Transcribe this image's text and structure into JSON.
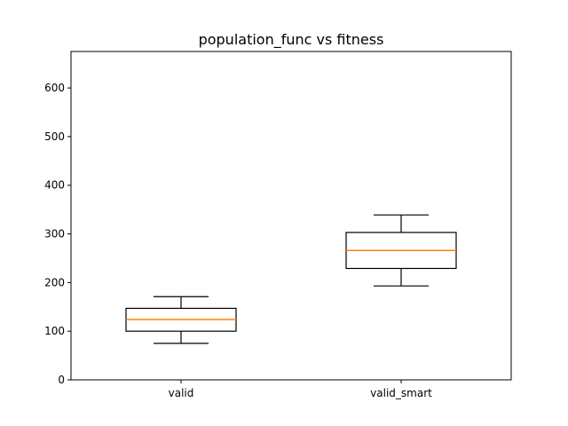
{
  "chart_data": {
    "type": "box",
    "title": "population_func vs fitness",
    "xlabel": "",
    "ylabel": "",
    "categories": [
      "valid",
      "valid_smart"
    ],
    "boxes": [
      {
        "category": "valid",
        "min": 75,
        "q1": 100,
        "median": 124,
        "q3": 147,
        "max": 171
      },
      {
        "category": "valid_smart",
        "min": 193,
        "q1": 229,
        "median": 266,
        "q3": 303,
        "max": 339
      }
    ],
    "ylim": [
      0,
      675
    ],
    "yticks": [
      0,
      100,
      200,
      300,
      400,
      500,
      600
    ],
    "grid": false,
    "colors": {
      "box": "#000000",
      "median": "#ff7f0e"
    }
  }
}
